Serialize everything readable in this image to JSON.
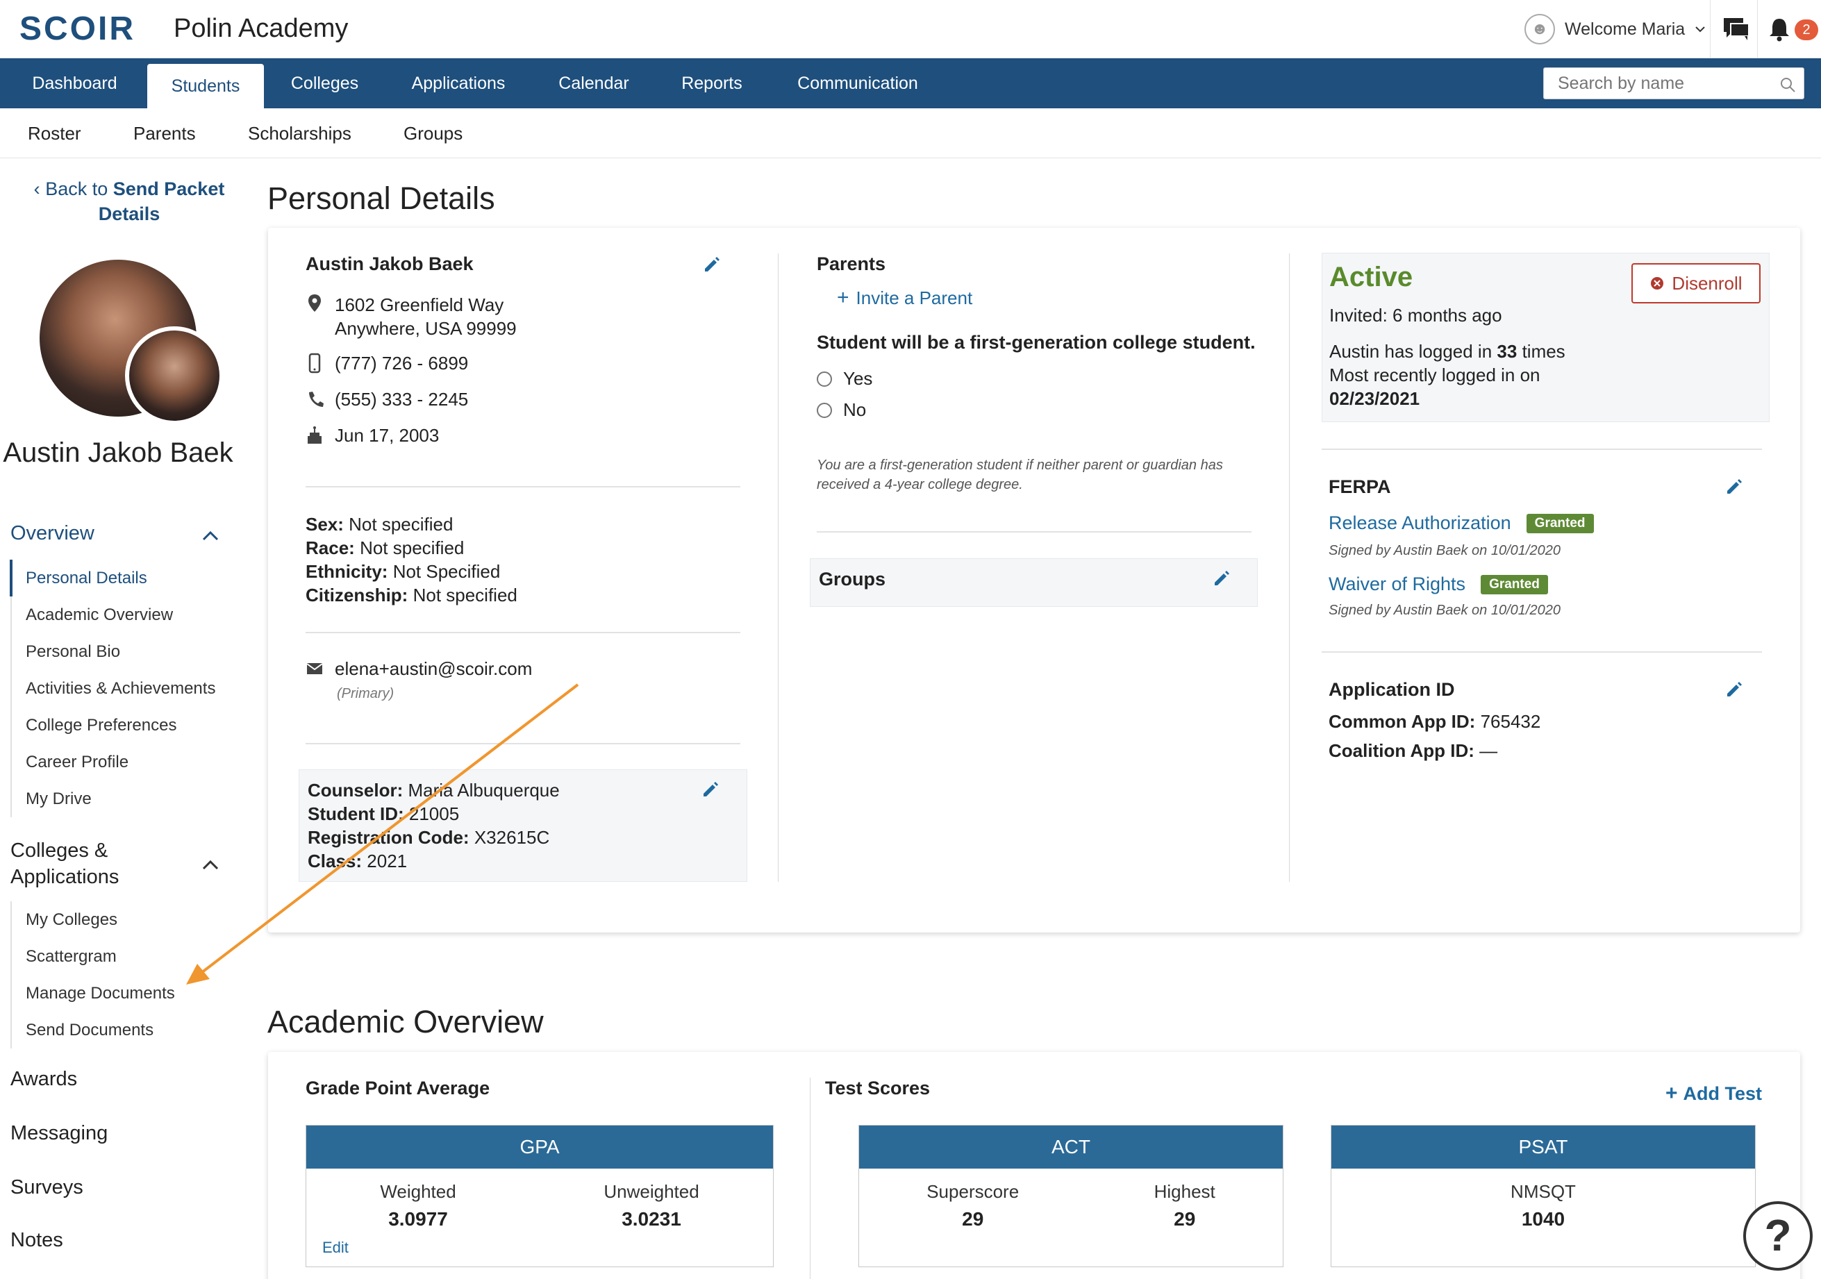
{
  "header": {
    "logo": "SCOIR",
    "org_name": "Polin Academy",
    "welcome": "Welcome Maria",
    "notification_count": "2"
  },
  "nav": {
    "items": [
      "Dashboard",
      "Students",
      "Colleges",
      "Applications",
      "Calendar",
      "Reports",
      "Communication"
    ],
    "active": "Students",
    "search_placeholder": "Search by name"
  },
  "subnav": {
    "items": [
      "Roster",
      "Parents",
      "Scholarships",
      "Groups"
    ]
  },
  "sidebar": {
    "back_prefix": "Back to",
    "back_target": "Send Packet Details",
    "student_name": "Austin Jakob Baek",
    "overview_label": "Overview",
    "overview_items": [
      "Personal Details",
      "Academic Overview",
      "Personal Bio",
      "Activities & Achievements",
      "College Preferences",
      "Career Profile",
      "My Drive"
    ],
    "colleges_label": "Colleges & Applications",
    "colleges_items": [
      "My Colleges",
      "Scattergram",
      "Manage Documents",
      "Send Documents"
    ],
    "other_sections": [
      "Awards",
      "Messaging",
      "Surveys",
      "Notes"
    ]
  },
  "personal_details": {
    "section_title": "Personal Details",
    "name": "Austin Jakob Baek",
    "address_line1": "1602 Greenfield Way",
    "address_line2": "Anywhere, USA 99999",
    "mobile": "(777) 726 - 6899",
    "phone": "(555) 333 - 2245",
    "birthday": "Jun 17, 2003",
    "sex_label": "Sex:",
    "sex": "Not specified",
    "race_label": "Race:",
    "race": "Not specified",
    "ethnicity_label": "Ethnicity:",
    "ethnicity": "Not Specified",
    "citizenship_label": "Citizenship:",
    "citizenship": "Not specified",
    "email": "elena+austin@scoir.com",
    "email_tag": "(Primary)",
    "counselor_label": "Counselor:",
    "counselor": "Maria Albuquerque",
    "student_id_label": "Student ID:",
    "student_id": "21005",
    "reg_code_label": "Registration Code:",
    "reg_code": "X32615C",
    "class_label": "Class:",
    "class": "2021",
    "parents_heading": "Parents",
    "invite_parent": "Invite a Parent",
    "first_gen_question": "Student will be a first-generation college student.",
    "yes": "Yes",
    "no": "No",
    "first_gen_note": "You are a first-generation student if neither parent or guardian has received a 4-year college degree.",
    "groups_heading": "Groups",
    "status": "Active",
    "invited": "Invited: 6 months ago",
    "login_prefix": "Austin has logged in",
    "login_count": "33",
    "login_suffix": "times",
    "recent_login_label": "Most recently logged in on",
    "recent_login_date": "02/23/2021",
    "disenroll": "Disenroll",
    "ferpa_heading": "FERPA",
    "release_auth": "Release Authorization",
    "waiver": "Waiver of Rights",
    "granted": "Granted",
    "release_signed": "Signed by Austin Baek on 10/01/2020",
    "waiver_signed": "Signed by Austin Baek on 10/01/2020",
    "app_id_heading": "Application ID",
    "common_app_label": "Common App ID:",
    "common_app": "765432",
    "coalition_label": "Coalition App ID:",
    "coalition": "—"
  },
  "academic": {
    "section_title": "Academic Overview",
    "gpa_heading": "Grade Point Average",
    "test_heading": "Test Scores",
    "add_test": "Add Test",
    "gpa_title": "GPA",
    "weighted_label": "Weighted",
    "weighted": "3.0977",
    "unweighted_label": "Unweighted",
    "unweighted": "3.0231",
    "edit": "Edit",
    "act_title": "ACT",
    "superscore_label": "Superscore",
    "superscore": "29",
    "highest_label": "Highest",
    "highest": "29",
    "psat_title": "PSAT",
    "nmsqt_label": "NMSQT",
    "nmsqt": "1040"
  },
  "help": "?",
  "colors": {
    "brand_blue": "#1e4f7d",
    "link_blue": "#1e6aa0",
    "active_green": "#5a8a2b",
    "granted_green": "#5e8a35",
    "disenroll_red": "#b03a2e",
    "annotation_orange": "#f0962e"
  }
}
